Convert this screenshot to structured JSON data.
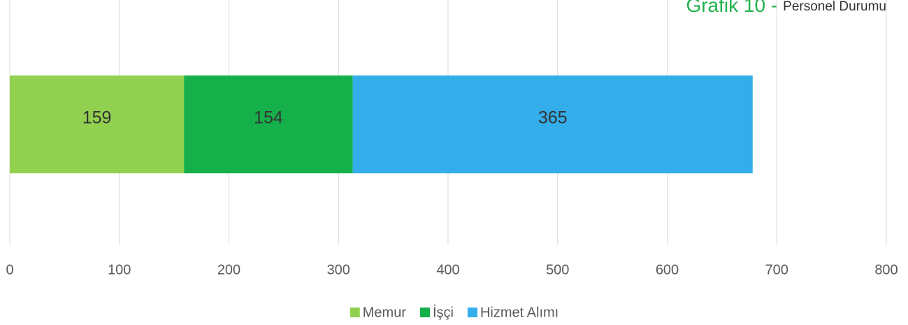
{
  "chart_data": {
    "type": "bar",
    "orientation": "horizontal",
    "stacked": true,
    "title": "Grafik 10 -",
    "subtitle": "Personel Durumu",
    "categories": [
      null
    ],
    "series": [
      {
        "name": "Memur",
        "color": "#92d050",
        "values": [
          159
        ]
      },
      {
        "name": "İşçi",
        "color": "#15b04a",
        "values": [
          154
        ]
      },
      {
        "name": "Hizmet Alımı",
        "color": "#33aeeb",
        "values": [
          365
        ]
      }
    ],
    "xlim": [
      0,
      800
    ],
    "xticks": [
      0,
      100,
      200,
      300,
      400,
      500,
      600,
      700,
      800
    ],
    "grid": true,
    "legend": "bottom"
  }
}
